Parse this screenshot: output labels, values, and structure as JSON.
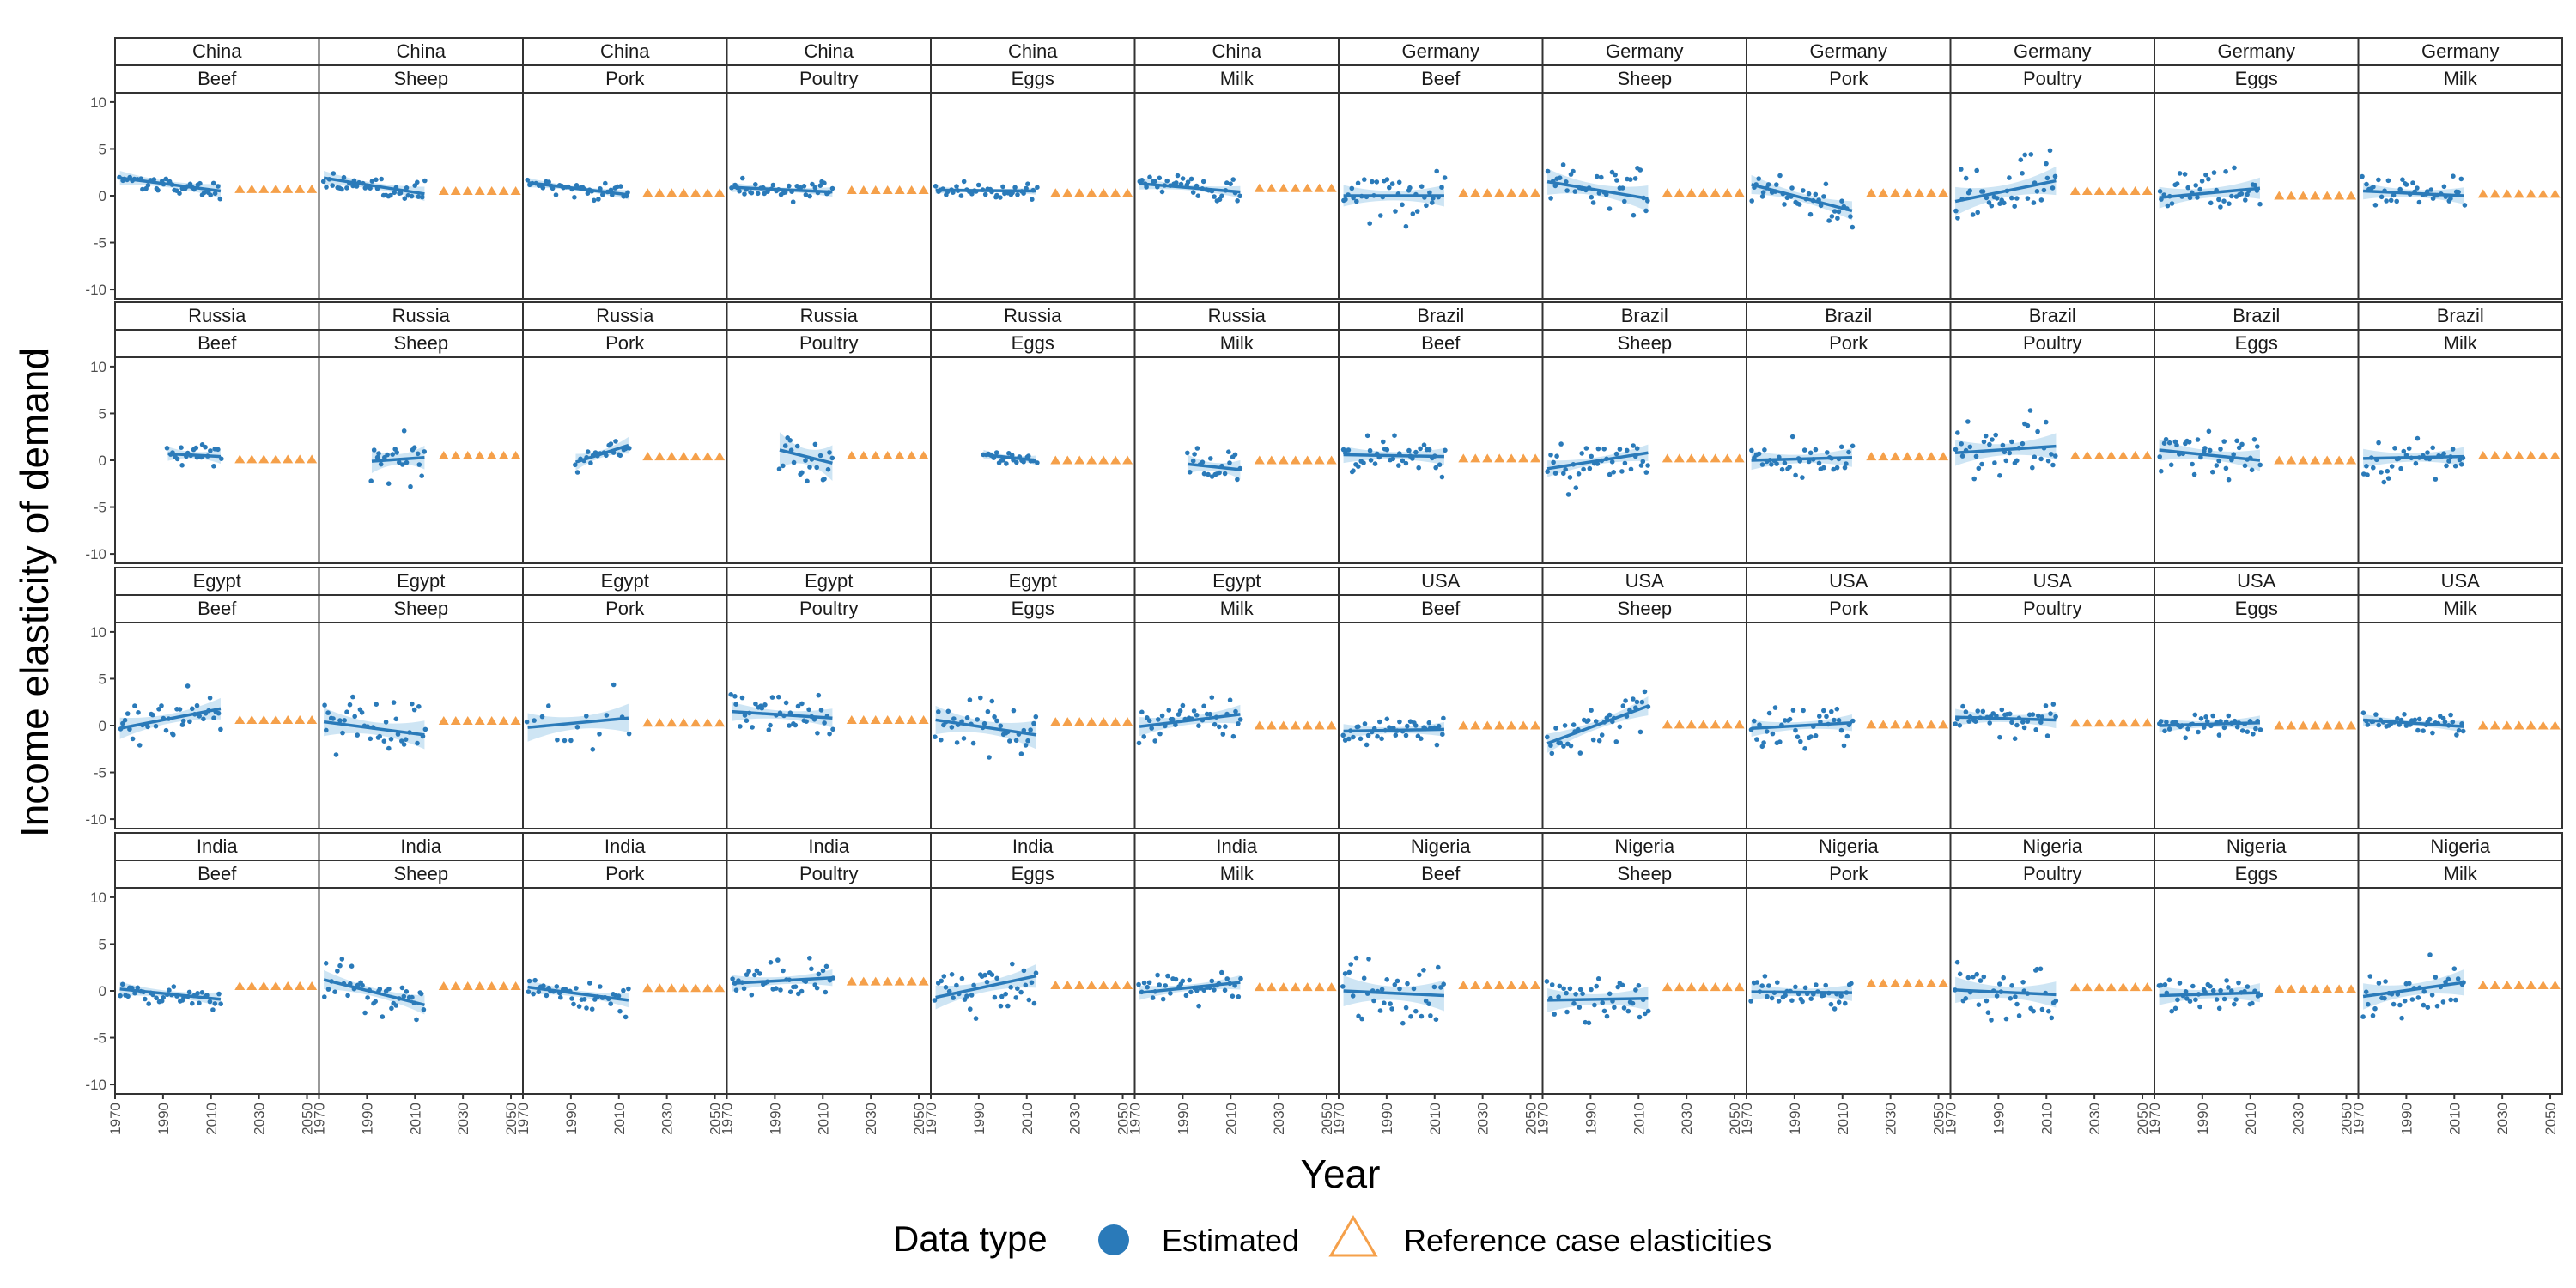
{
  "chart_data": {
    "type": "scatter",
    "xlabel": "Year",
    "ylabel": "Income elasticity of demand",
    "xlim": [
      1970,
      2055
    ],
    "ylim": [
      -11,
      11
    ],
    "x_ticks": [
      1970,
      1990,
      2010,
      2030,
      2050
    ],
    "y_ticks": [
      -10,
      -5,
      0,
      5,
      10
    ],
    "grid": false,
    "legend": {
      "title": "Data type",
      "position": "bottom",
      "entries": [
        {
          "label": "Estimated",
          "marker": "circle",
          "color": "#2a7ab9"
        },
        {
          "label": "Reference case elasticities",
          "marker": "triangle",
          "color": "#f5a04a"
        }
      ]
    },
    "colors": {
      "estimated": "#2a7ab9",
      "ribbon": "#c6e0f2",
      "reference": "#f5a04a"
    },
    "products": [
      "Beef",
      "Sheep",
      "Pork",
      "Poultry",
      "Eggs",
      "Milk"
    ],
    "panel_rows": [
      [
        "China",
        "Germany"
      ],
      [
        "Russia",
        "Brazil"
      ],
      [
        "Egypt",
        "USA"
      ],
      [
        "India",
        "Nigeria"
      ]
    ],
    "panels": [
      {
        "country": "China",
        "product": "Beef",
        "start": 1972,
        "fit": [
          1.9,
          0.5
        ],
        "band": 0.6,
        "spread": 0.9,
        "ref": 0.7,
        "n": 40
      },
      {
        "country": "China",
        "product": "Sheep",
        "start": 1972,
        "fit": [
          1.9,
          0.2
        ],
        "band": 0.6,
        "spread": 1.3,
        "ref": 0.5,
        "n": 40
      },
      {
        "country": "China",
        "product": "Pork",
        "start": 1972,
        "fit": [
          1.4,
          0.1
        ],
        "band": 0.4,
        "spread": 0.9,
        "ref": 0.3,
        "n": 40
      },
      {
        "country": "China",
        "product": "Poultry",
        "start": 1972,
        "fit": [
          0.9,
          0.4
        ],
        "band": 0.4,
        "spread": 1.0,
        "ref": 0.6,
        "n": 40
      },
      {
        "country": "China",
        "product": "Eggs",
        "start": 1972,
        "fit": [
          0.6,
          0.5
        ],
        "band": 0.3,
        "spread": 0.8,
        "ref": 0.3,
        "n": 40
      },
      {
        "country": "China",
        "product": "Milk",
        "start": 1972,
        "fit": [
          1.3,
          0.4
        ],
        "band": 0.5,
        "spread": 1.3,
        "ref": 0.8,
        "n": 40
      },
      {
        "country": "Germany",
        "product": "Beef",
        "start": 1972,
        "fit": [
          0.0,
          0.0
        ],
        "band": 0.9,
        "spread": 2.6,
        "ref": 0.3,
        "n": 40
      },
      {
        "country": "Germany",
        "product": "Sheep",
        "start": 1972,
        "fit": [
          1.5,
          -0.3
        ],
        "band": 1.1,
        "spread": 2.8,
        "ref": 0.3,
        "n": 40
      },
      {
        "country": "Germany",
        "product": "Pork",
        "start": 1972,
        "fit": [
          1.2,
          -1.6
        ],
        "band": 0.8,
        "spread": 1.9,
        "ref": 0.3,
        "n": 40
      },
      {
        "country": "Germany",
        "product": "Poultry",
        "start": 1972,
        "fit": [
          -0.6,
          1.6
        ],
        "band": 1.2,
        "spread": 3.2,
        "ref": 0.5,
        "n": 40
      },
      {
        "country": "Germany",
        "product": "Eggs",
        "start": 1972,
        "fit": [
          -0.2,
          0.8
        ],
        "band": 0.9,
        "spread": 2.5,
        "ref": 0.0,
        "n": 40
      },
      {
        "country": "Germany",
        "product": "Milk",
        "start": 1972,
        "fit": [
          0.5,
          0.0
        ],
        "band": 0.7,
        "spread": 1.8,
        "ref": 0.2,
        "n": 40
      },
      {
        "country": "Russia",
        "product": "Beef",
        "start": 1992,
        "fit": [
          0.7,
          0.4
        ],
        "band": 0.6,
        "spread": 1.2,
        "ref": 0.1,
        "n": 22
      },
      {
        "country": "Russia",
        "product": "Sheep",
        "start": 1992,
        "fit": [
          -0.1,
          0.3
        ],
        "band": 1.0,
        "spread": 2.6,
        "ref": 0.5,
        "n": 22
      },
      {
        "country": "Russia",
        "product": "Pork",
        "start": 1992,
        "fit": [
          -0.2,
          1.6
        ],
        "band": 0.7,
        "spread": 1.2,
        "ref": 0.4,
        "n": 22
      },
      {
        "country": "Russia",
        "product": "Poultry",
        "start": 1992,
        "fit": [
          1.1,
          -0.3
        ],
        "band": 1.5,
        "spread": 3.5,
        "ref": 0.5,
        "n": 22
      },
      {
        "country": "Russia",
        "product": "Eggs",
        "start": 1992,
        "fit": [
          0.6,
          0.0
        ],
        "band": 0.4,
        "spread": 0.7,
        "ref": 0.0,
        "n": 22
      },
      {
        "country": "Russia",
        "product": "Milk",
        "start": 1992,
        "fit": [
          -0.4,
          -1.0
        ],
        "band": 0.8,
        "spread": 2.0,
        "ref": 0.0,
        "n": 22
      },
      {
        "country": "Brazil",
        "product": "Beef",
        "start": 1972,
        "fit": [
          0.6,
          0.4
        ],
        "band": 0.7,
        "spread": 2.3,
        "ref": 0.2,
        "n": 40
      },
      {
        "country": "Brazil",
        "product": "Sheep",
        "start": 1972,
        "fit": [
          -0.9,
          0.8
        ],
        "band": 0.7,
        "spread": 2.5,
        "ref": 0.2,
        "n": 40
      },
      {
        "country": "Brazil",
        "product": "Pork",
        "start": 1972,
        "fit": [
          0.0,
          0.3
        ],
        "band": 0.8,
        "spread": 2.3,
        "ref": 0.4,
        "n": 40
      },
      {
        "country": "Brazil",
        "product": "Poultry",
        "start": 1972,
        "fit": [
          0.8,
          1.5
        ],
        "band": 1.1,
        "spread": 3.5,
        "ref": 0.5,
        "n": 40
      },
      {
        "country": "Brazil",
        "product": "Eggs",
        "start": 1972,
        "fit": [
          1.1,
          0.0
        ],
        "band": 0.9,
        "spread": 2.8,
        "ref": 0.0,
        "n": 40
      },
      {
        "country": "Brazil",
        "product": "Milk",
        "start": 1972,
        "fit": [
          0.2,
          0.4
        ],
        "band": 0.8,
        "spread": 2.7,
        "ref": 0.5,
        "n": 40
      },
      {
        "country": "Egypt",
        "product": "Beef",
        "start": 1972,
        "fit": [
          -0.3,
          1.8
        ],
        "band": 0.9,
        "spread": 2.5,
        "ref": 0.6,
        "n": 40
      },
      {
        "country": "Egypt",
        "product": "Sheep",
        "start": 1972,
        "fit": [
          0.4,
          -1.0
        ],
        "band": 1.2,
        "spread": 3.2,
        "ref": 0.5,
        "n": 40
      },
      {
        "country": "Egypt",
        "product": "Pork",
        "start": 1972,
        "fit": [
          -0.2,
          0.8
        ],
        "band": 1.2,
        "spread": 3.0,
        "ref": 0.3,
        "n": 15
      },
      {
        "country": "Egypt",
        "product": "Poultry",
        "start": 1972,
        "fit": [
          1.5,
          0.8
        ],
        "band": 0.8,
        "spread": 2.3,
        "ref": 0.6,
        "n": 40
      },
      {
        "country": "Egypt",
        "product": "Eggs",
        "start": 1972,
        "fit": [
          0.6,
          -1.0
        ],
        "band": 1.2,
        "spread": 3.5,
        "ref": 0.4,
        "n": 40
      },
      {
        "country": "Egypt",
        "product": "Milk",
        "start": 1972,
        "fit": [
          -0.1,
          1.2
        ],
        "band": 0.8,
        "spread": 2.0,
        "ref": 0.0,
        "n": 40
      },
      {
        "country": "USA",
        "product": "Beef",
        "start": 1972,
        "fit": [
          -0.6,
          -0.4
        ],
        "band": 0.6,
        "spread": 1.5,
        "ref": 0.0,
        "n": 40
      },
      {
        "country": "USA",
        "product": "Sheep",
        "start": 1972,
        "fit": [
          -1.9,
          2.1
        ],
        "band": 0.8,
        "spread": 2.3,
        "ref": 0.1,
        "n": 40
      },
      {
        "country": "USA",
        "product": "Pork",
        "start": 1972,
        "fit": [
          -0.3,
          0.3
        ],
        "band": 0.7,
        "spread": 2.3,
        "ref": 0.1,
        "n": 40
      },
      {
        "country": "USA",
        "product": "Poultry",
        "start": 1972,
        "fit": [
          0.9,
          0.6
        ],
        "band": 0.7,
        "spread": 1.7,
        "ref": 0.3,
        "n": 40
      },
      {
        "country": "USA",
        "product": "Eggs",
        "start": 1972,
        "fit": [
          0.0,
          0.3
        ],
        "band": 0.6,
        "spread": 1.2,
        "ref": 0.0,
        "n": 40
      },
      {
        "country": "USA",
        "product": "Milk",
        "start": 1972,
        "fit": [
          0.6,
          -0.1
        ],
        "band": 0.5,
        "spread": 1.0,
        "ref": 0.0,
        "n": 40
      },
      {
        "country": "India",
        "product": "Beef",
        "start": 1972,
        "fit": [
          0.2,
          -0.9
        ],
        "band": 0.6,
        "spread": 1.3,
        "ref": 0.5,
        "n": 40
      },
      {
        "country": "India",
        "product": "Sheep",
        "start": 1972,
        "fit": [
          1.2,
          -1.5
        ],
        "band": 0.8,
        "spread": 2.0,
        "ref": 0.5,
        "n": 40
      },
      {
        "country": "India",
        "product": "Pork",
        "start": 1972,
        "fit": [
          0.4,
          -1.0
        ],
        "band": 0.6,
        "spread": 1.5,
        "ref": 0.3,
        "n": 40
      },
      {
        "country": "India",
        "product": "Poultry",
        "start": 1972,
        "fit": [
          0.8,
          1.4
        ],
        "band": 0.7,
        "spread": 1.8,
        "ref": 1.0,
        "n": 40
      },
      {
        "country": "India",
        "product": "Eggs",
        "start": 1972,
        "fit": [
          -0.7,
          1.6
        ],
        "band": 1.0,
        "spread": 3.0,
        "ref": 0.6,
        "n": 40
      },
      {
        "country": "India",
        "product": "Milk",
        "start": 1972,
        "fit": [
          -0.2,
          0.9
        ],
        "band": 0.6,
        "spread": 1.8,
        "ref": 0.4,
        "n": 40
      },
      {
        "country": "Nigeria",
        "product": "Beef",
        "start": 1972,
        "fit": [
          0.0,
          -0.5
        ],
        "band": 1.3,
        "spread": 3.5,
        "ref": 0.6,
        "n": 40
      },
      {
        "country": "Nigeria",
        "product": "Sheep",
        "start": 1972,
        "fit": [
          -1.0,
          -0.8
        ],
        "band": 1.0,
        "spread": 2.8,
        "ref": 0.4,
        "n": 40
      },
      {
        "country": "Nigeria",
        "product": "Pork",
        "start": 1972,
        "fit": [
          -0.1,
          -0.2
        ],
        "band": 0.7,
        "spread": 1.7,
        "ref": 0.8,
        "n": 40
      },
      {
        "country": "Nigeria",
        "product": "Poultry",
        "start": 1972,
        "fit": [
          0.1,
          -0.4
        ],
        "band": 1.1,
        "spread": 2.8,
        "ref": 0.4,
        "n": 40
      },
      {
        "country": "Nigeria",
        "product": "Eggs",
        "start": 1972,
        "fit": [
          -0.5,
          -0.2
        ],
        "band": 0.8,
        "spread": 1.8,
        "ref": 0.2,
        "n": 40
      },
      {
        "country": "Nigeria",
        "product": "Milk",
        "start": 1972,
        "fit": [
          -0.6,
          0.9
        ],
        "band": 1.1,
        "spread": 3.0,
        "ref": 0.6,
        "n": 40
      }
    ],
    "estimation_end": 2014,
    "reference_start": 2022,
    "reference_end": 2052
  }
}
